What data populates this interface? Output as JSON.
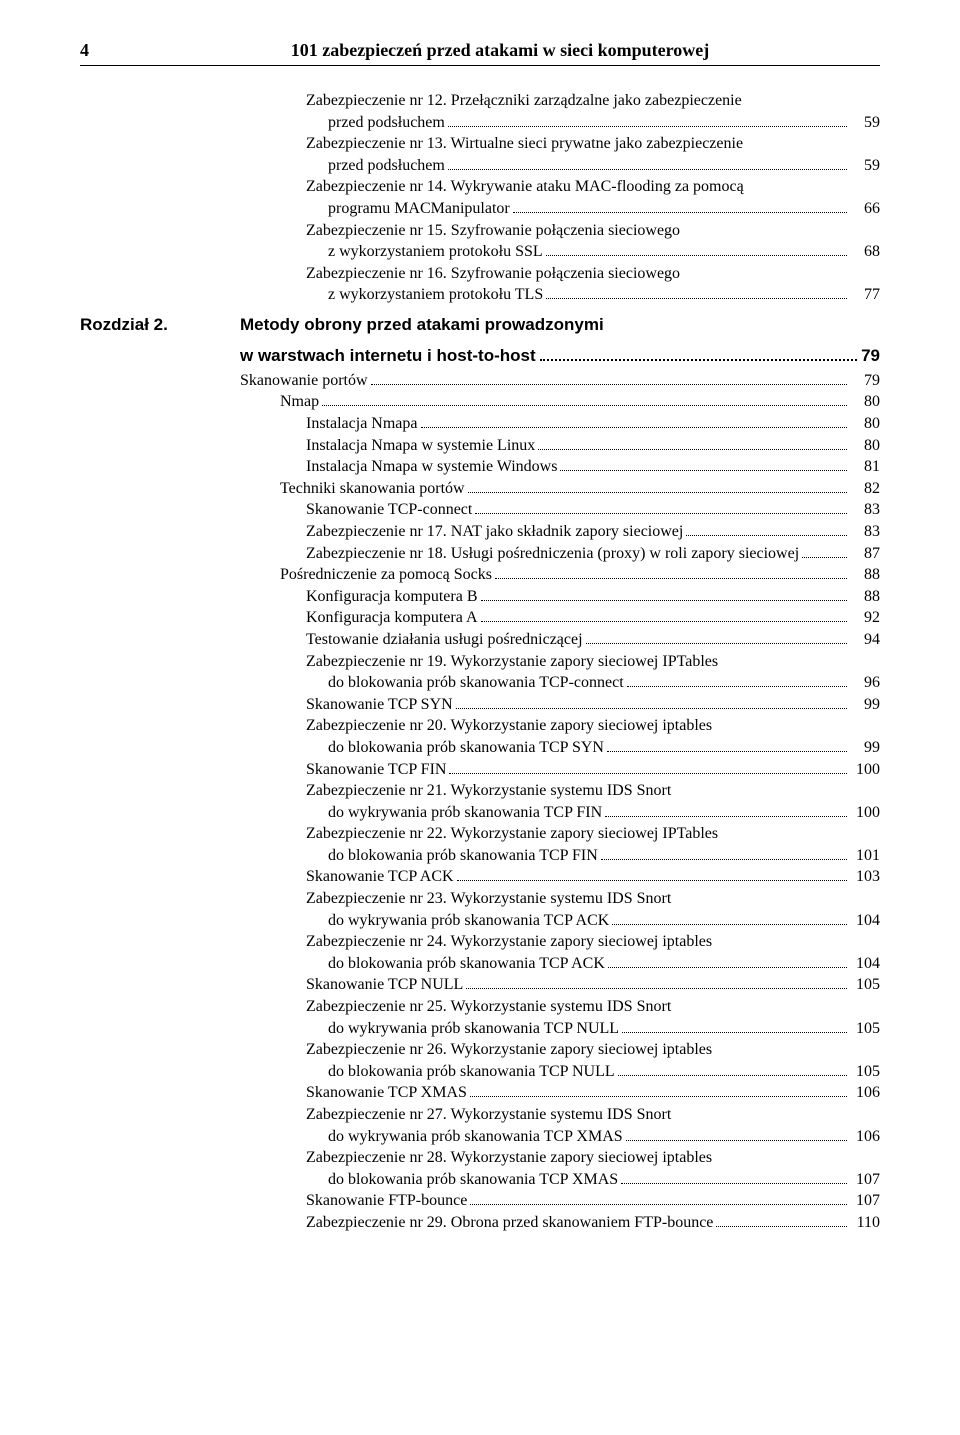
{
  "header": {
    "page_number": "4",
    "title": "101 zabezpieczeń przed atakami w sieci komputerowej"
  },
  "chapter": {
    "prefix": "Rozdział 2.",
    "title_line1": "Metody obrony przed atakami prowadzonymi",
    "title_line2": "w warstwach internetu i host-to-host",
    "page": "79"
  },
  "entries": [
    {
      "text": "Zabezpieczenie nr 12. Przełączniki zarządzalne jako zabezpieczenie",
      "indent": 3,
      "nopage": true
    },
    {
      "text": "przed podsłuchem",
      "indent": "cont-3",
      "page": "59"
    },
    {
      "text": "Zabezpieczenie nr 13. Wirtualne sieci prywatne jako zabezpieczenie",
      "indent": 3,
      "nopage": true
    },
    {
      "text": "przed podsłuchem",
      "indent": "cont-3",
      "page": "59"
    },
    {
      "text": "Zabezpieczenie nr 14. Wykrywanie ataku MAC-flooding za pomocą",
      "indent": 3,
      "nopage": true
    },
    {
      "text": "programu MACManipulator",
      "indent": "cont-3",
      "page": "66"
    },
    {
      "text": "Zabezpieczenie nr 15. Szyfrowanie połączenia sieciowego",
      "indent": 3,
      "nopage": true
    },
    {
      "text": "z wykorzystaniem protokołu SSL",
      "indent": "cont-3",
      "page": "68"
    },
    {
      "text": "Zabezpieczenie nr 16. Szyfrowanie połączenia sieciowego",
      "indent": 3,
      "nopage": true
    },
    {
      "text": "z wykorzystaniem protokołu TLS",
      "indent": "cont-3",
      "page": "77"
    },
    {
      "chapter": true
    },
    {
      "text": "Skanowanie portów",
      "indent": 1,
      "page": "79"
    },
    {
      "text": "Nmap",
      "indent": 2,
      "page": "80"
    },
    {
      "text": "Instalacja Nmapa",
      "indent": 3,
      "page": "80"
    },
    {
      "text": "Instalacja Nmapa w systemie Linux",
      "indent": 3,
      "page": "80"
    },
    {
      "text": "Instalacja Nmapa w systemie Windows",
      "indent": 3,
      "page": "81"
    },
    {
      "text": "Techniki skanowania portów",
      "indent": 2,
      "page": "82"
    },
    {
      "text": "Skanowanie TCP-connect",
      "indent": 3,
      "page": "83"
    },
    {
      "text": "Zabezpieczenie nr 17. NAT jako składnik zapory sieciowej",
      "indent": 3,
      "page": "83"
    },
    {
      "text": "Zabezpieczenie nr 18. Usługi pośredniczenia (proxy) w roli zapory sieciowej",
      "indent": 3,
      "page": "87"
    },
    {
      "text": "Pośredniczenie za pomocą Socks",
      "indent": 2,
      "page": "88"
    },
    {
      "text": "Konfiguracja komputera B",
      "indent": 3,
      "page": "88"
    },
    {
      "text": "Konfiguracja komputera A",
      "indent": 3,
      "page": "92"
    },
    {
      "text": "Testowanie działania usługi pośredniczącej",
      "indent": 3,
      "page": "94"
    },
    {
      "text": "Zabezpieczenie nr 19. Wykorzystanie zapory sieciowej IPTables",
      "indent": 3,
      "nopage": true
    },
    {
      "text": "do blokowania prób skanowania TCP-connect",
      "indent": "cont-3",
      "page": "96"
    },
    {
      "text": "Skanowanie TCP SYN",
      "indent": 3,
      "page": "99"
    },
    {
      "text": "Zabezpieczenie nr 20. Wykorzystanie zapory sieciowej iptables",
      "indent": 3,
      "nopage": true
    },
    {
      "text": "do blokowania prób skanowania TCP SYN",
      "indent": "cont-3",
      "page": "99"
    },
    {
      "text": "Skanowanie TCP FIN",
      "indent": 3,
      "page": "100"
    },
    {
      "text": "Zabezpieczenie nr 21. Wykorzystanie systemu IDS Snort",
      "indent": 3,
      "nopage": true
    },
    {
      "text": "do wykrywania prób skanowania TCP FIN",
      "indent": "cont-3",
      "page": "100"
    },
    {
      "text": "Zabezpieczenie nr 22. Wykorzystanie zapory sieciowej IPTables",
      "indent": 3,
      "nopage": true
    },
    {
      "text": "do blokowania prób skanowania TCP FIN",
      "indent": "cont-3",
      "page": "101"
    },
    {
      "text": "Skanowanie TCP ACK",
      "indent": 3,
      "page": "103"
    },
    {
      "text": "Zabezpieczenie nr 23. Wykorzystanie systemu IDS Snort",
      "indent": 3,
      "nopage": true
    },
    {
      "text": "do wykrywania prób skanowania TCP ACK",
      "indent": "cont-3",
      "page": "104"
    },
    {
      "text": "Zabezpieczenie nr 24. Wykorzystanie zapory sieciowej iptables",
      "indent": 3,
      "nopage": true
    },
    {
      "text": "do blokowania prób skanowania TCP ACK",
      "indent": "cont-3",
      "page": "104"
    },
    {
      "text": "Skanowanie TCP NULL",
      "indent": 3,
      "page": "105"
    },
    {
      "text": "Zabezpieczenie nr 25. Wykorzystanie systemu IDS Snort",
      "indent": 3,
      "nopage": true
    },
    {
      "text": "do wykrywania prób skanowania TCP NULL",
      "indent": "cont-3",
      "page": "105"
    },
    {
      "text": "Zabezpieczenie nr 26. Wykorzystanie zapory sieciowej iptables",
      "indent": 3,
      "nopage": true
    },
    {
      "text": "do blokowania prób skanowania TCP NULL",
      "indent": "cont-3",
      "page": "105"
    },
    {
      "text": "Skanowanie TCP XMAS",
      "indent": 3,
      "page": "106"
    },
    {
      "text": "Zabezpieczenie nr 27. Wykorzystanie systemu IDS Snort",
      "indent": 3,
      "nopage": true
    },
    {
      "text": "do wykrywania prób skanowania TCP XMAS",
      "indent": "cont-3",
      "page": "106"
    },
    {
      "text": "Zabezpieczenie nr 28. Wykorzystanie zapory sieciowej iptables",
      "indent": 3,
      "nopage": true
    },
    {
      "text": "do blokowania prób skanowania TCP XMAS",
      "indent": "cont-3",
      "page": "107"
    },
    {
      "text": "Skanowanie FTP-bounce",
      "indent": 3,
      "page": "107"
    },
    {
      "text": "Zabezpieczenie nr 29. Obrona przed skanowaniem FTP-bounce",
      "indent": 3,
      "page": "110"
    }
  ]
}
